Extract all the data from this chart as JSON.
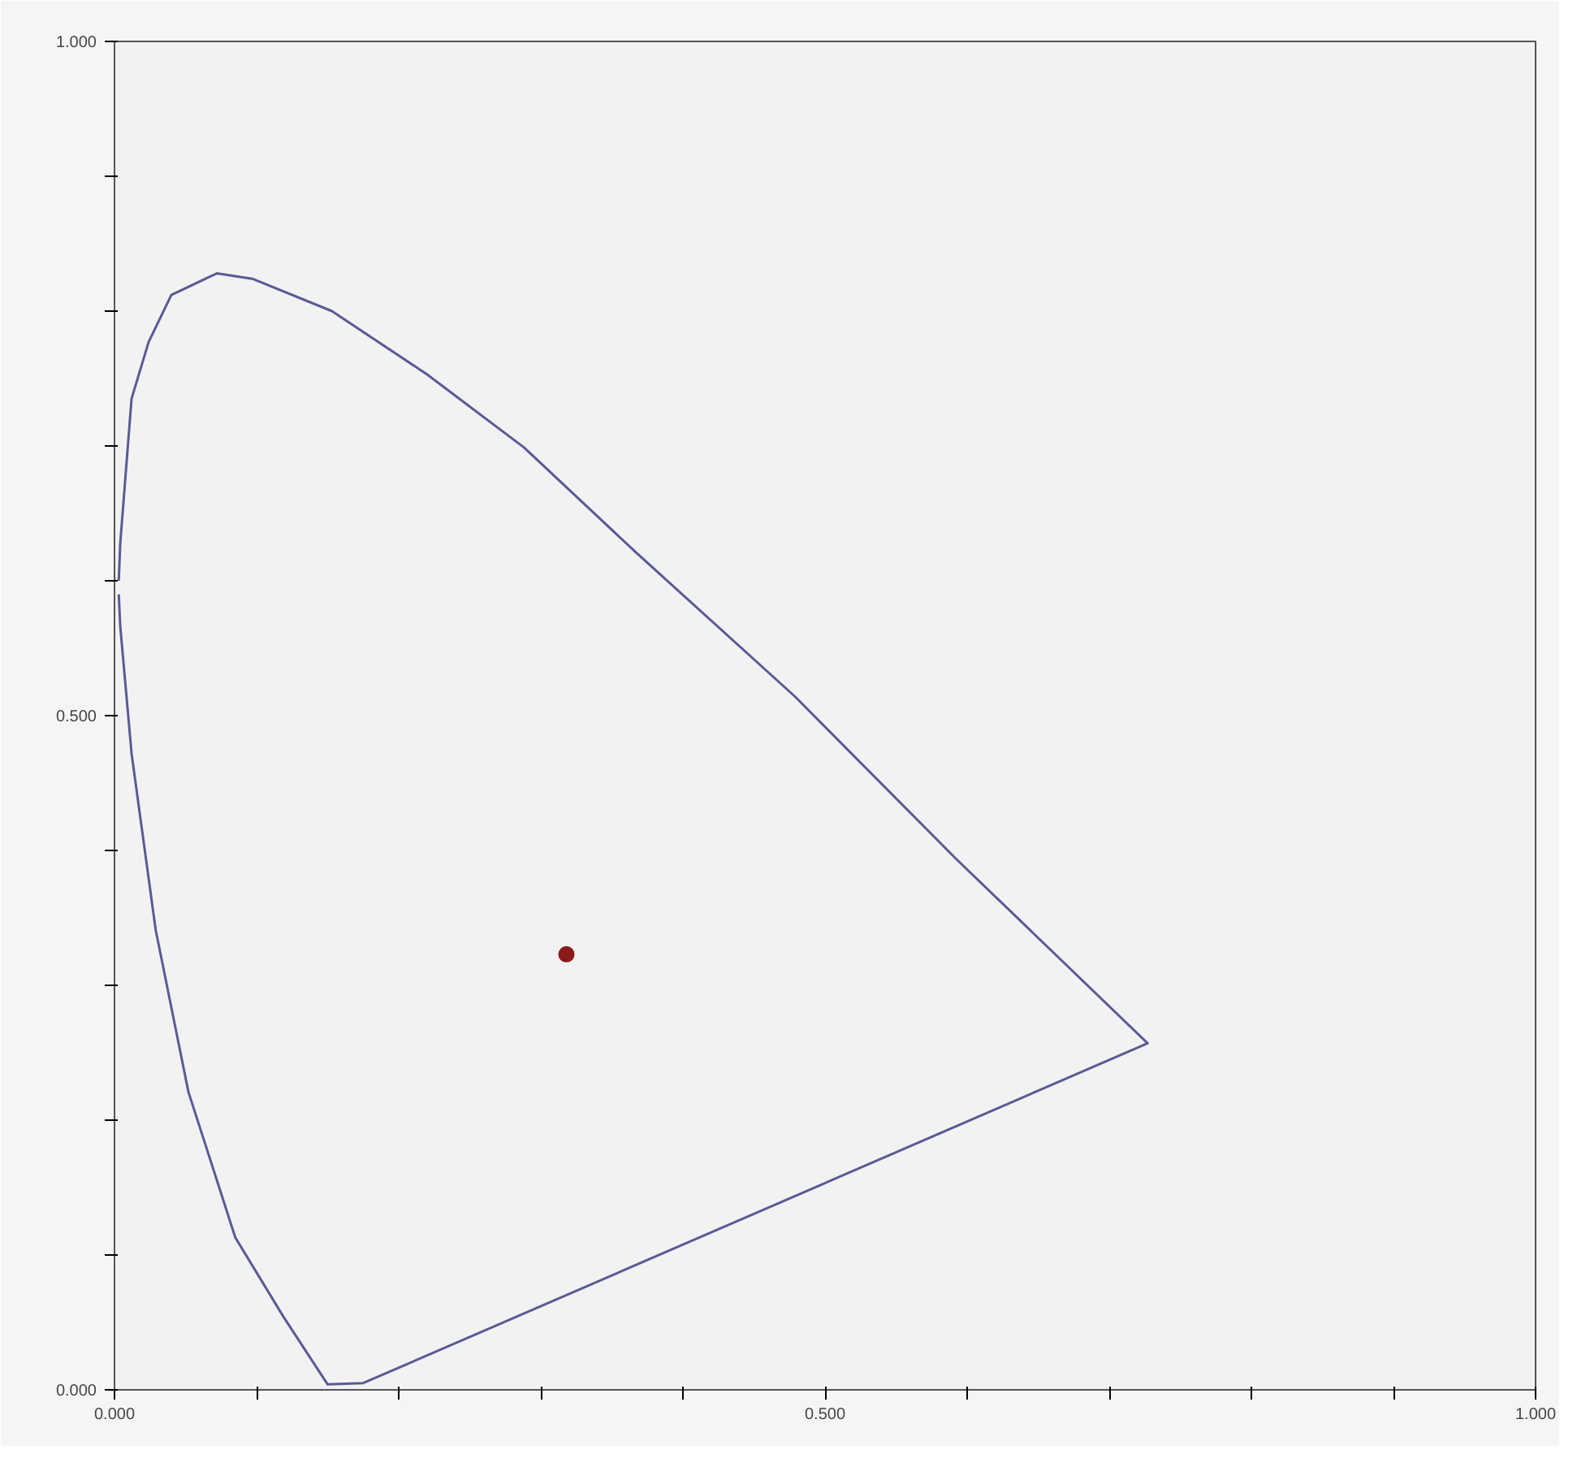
{
  "chart_data": {
    "type": "line",
    "xlim": [
      0,
      1
    ],
    "ylim": [
      0,
      1
    ],
    "xticks": [
      {
        "value": 0,
        "label": "0.000"
      },
      {
        "value": 0.1,
        "label": null
      },
      {
        "value": 0.2,
        "label": null
      },
      {
        "value": 0.3,
        "label": null
      },
      {
        "value": 0.4,
        "label": null
      },
      {
        "value": 0.5,
        "label": "0.500"
      },
      {
        "value": 0.6,
        "label": null
      },
      {
        "value": 0.7,
        "label": null
      },
      {
        "value": 0.8,
        "label": null
      },
      {
        "value": 0.9,
        "label": null
      },
      {
        "value": 1,
        "label": "1.000"
      }
    ],
    "yticks": [
      {
        "value": 0,
        "label": "0.000"
      },
      {
        "value": 0.1,
        "label": null
      },
      {
        "value": 0.2,
        "label": null
      },
      {
        "value": 0.3,
        "label": null
      },
      {
        "value": 0.4,
        "label": null
      },
      {
        "value": 0.5,
        "label": "0.500"
      },
      {
        "value": 0.6,
        "label": null
      },
      {
        "value": 0.7,
        "label": null
      },
      {
        "value": 0.8,
        "label": null
      },
      {
        "value": 0.9,
        "label": null
      },
      {
        "value": 1,
        "label": "1.000"
      }
    ],
    "grid": false,
    "marker": "none",
    "line_style": "solid",
    "series": [
      {
        "color": "#5a5a96",
        "x": [
          0.003,
          0.004,
          0.012,
          0.024,
          0.04,
          0.072,
          0.097,
          0.153,
          0.22,
          0.288,
          0.367,
          0.479,
          0.592,
          0.727,
          0.175,
          0.15,
          0.119,
          0.085,
          0.052,
          0.029,
          0.012,
          0.004,
          0.003
        ],
        "values": [
          0.6,
          0.627,
          0.735,
          0.777,
          0.812,
          0.828,
          0.824,
          0.8,
          0.753,
          0.699,
          0.621,
          0.514,
          0.394,
          0.257,
          0.005,
          0.004,
          0.054,
          0.113,
          0.221,
          0.341,
          0.472,
          0.567,
          0.59
        ]
      },
      {
        "type": "scatter",
        "color": "#8b1a1a",
        "marker": "circle",
        "x": [
          0.318
        ],
        "values": [
          0.323
        ]
      }
    ]
  }
}
